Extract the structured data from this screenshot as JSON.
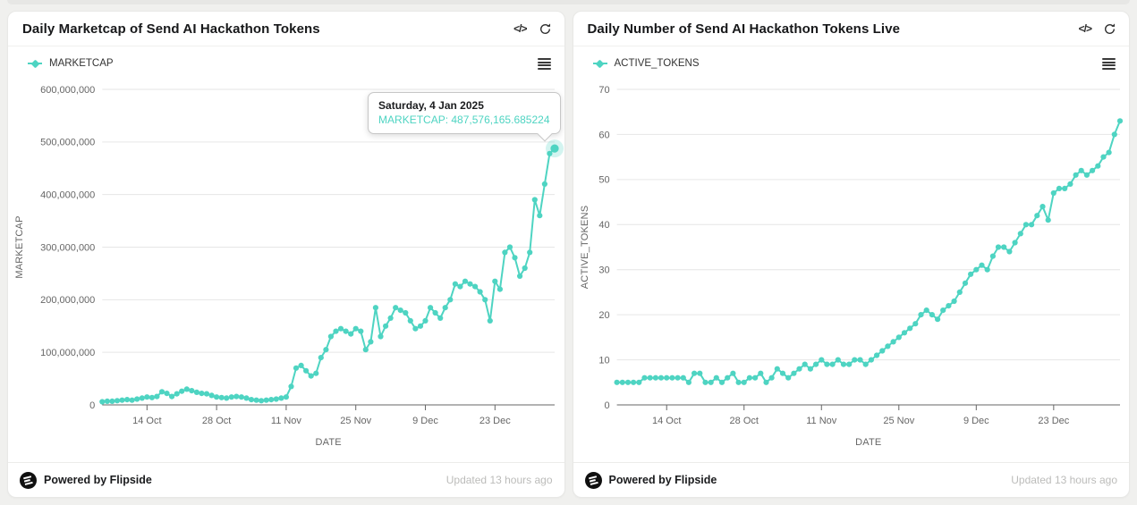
{
  "icons": {
    "code_glyph": "</>"
  },
  "cards": [
    {
      "title": "Daily Marketcap of Send AI Hackathon Tokens",
      "footer": {
        "powered_by": "Powered by Flipside",
        "updated": "Updated 13 hours ago"
      }
    },
    {
      "title": "Daily Number of Send AI Hackathon Tokens Live",
      "footer": {
        "powered_by": "Powered by Flipside",
        "updated": "Updated 13 hours ago"
      }
    }
  ],
  "chart_data": [
    {
      "type": "line",
      "title": "Daily Marketcap of Send AI Hackathon Tokens",
      "series_name": "MARKETCAP",
      "color": "#4ed4c2",
      "xlabel": "DATE",
      "ylabel": "MARKETCAP",
      "ylim": [
        0,
        600000000
      ],
      "y_tick_step": 100000000,
      "grid": true,
      "legend_position": "top-left",
      "x_ticks": [
        {
          "label": "14 Oct",
          "index": 9
        },
        {
          "label": "28 Oct",
          "index": 23
        },
        {
          "label": "11 Nov",
          "index": 37
        },
        {
          "label": "25 Nov",
          "index": 51
        },
        {
          "label": "9 Dec",
          "index": 65
        },
        {
          "label": "23 Dec",
          "index": 79
        }
      ],
      "values": [
        6000000,
        7000000,
        7000000,
        8000000,
        9000000,
        10000000,
        9000000,
        11000000,
        13000000,
        15000000,
        14000000,
        16000000,
        25000000,
        22000000,
        16000000,
        21000000,
        26000000,
        30000000,
        27000000,
        24000000,
        22000000,
        21000000,
        18000000,
        15000000,
        14000000,
        13000000,
        15000000,
        16000000,
        15000000,
        13000000,
        10000000,
        9000000,
        8000000,
        9000000,
        10000000,
        11000000,
        13000000,
        15000000,
        35000000,
        70000000,
        75000000,
        65000000,
        55000000,
        60000000,
        90000000,
        105000000,
        130000000,
        140000000,
        145000000,
        140000000,
        135000000,
        145000000,
        140000000,
        105000000,
        120000000,
        185000000,
        130000000,
        150000000,
        165000000,
        185000000,
        180000000,
        175000000,
        160000000,
        145000000,
        150000000,
        160000000,
        185000000,
        175000000,
        165000000,
        185000000,
        200000000,
        230000000,
        225000000,
        235000000,
        230000000,
        225000000,
        215000000,
        200000000,
        160000000,
        235000000,
        220000000,
        290000000,
        300000000,
        280000000,
        245000000,
        260000000,
        290000000,
        390000000,
        360000000,
        420000000,
        478000000,
        487576165.685224
      ],
      "tooltip": {
        "title": "Saturday, 4 Jan 2025",
        "text": "MARKETCAP: 487,576,165.685224"
      }
    },
    {
      "type": "line",
      "title": "Daily Number of Send AI Hackathon Tokens Live",
      "series_name": "ACTIVE_TOKENS",
      "color": "#4ed4c2",
      "xlabel": "DATE",
      "ylabel": "ACTIVE_TOKENS",
      "ylim": [
        0,
        70
      ],
      "y_tick_step": 10,
      "grid": true,
      "legend_position": "top-left",
      "x_ticks": [
        {
          "label": "14 Oct",
          "index": 9
        },
        {
          "label": "28 Oct",
          "index": 23
        },
        {
          "label": "11 Nov",
          "index": 37
        },
        {
          "label": "25 Nov",
          "index": 51
        },
        {
          "label": "9 Dec",
          "index": 65
        },
        {
          "label": "23 Dec",
          "index": 79
        }
      ],
      "values": [
        5,
        5,
        5,
        5,
        5,
        6,
        6,
        6,
        6,
        6,
        6,
        6,
        6,
        5,
        7,
        7,
        5,
        5,
        6,
        5,
        6,
        7,
        5,
        5,
        6,
        6,
        7,
        5,
        6,
        8,
        7,
        6,
        7,
        8,
        9,
        8,
        9,
        10,
        9,
        9,
        10,
        9,
        9,
        10,
        10,
        9,
        10,
        11,
        12,
        13,
        14,
        15,
        16,
        17,
        18,
        20,
        21,
        20,
        19,
        21,
        22,
        23,
        25,
        27,
        29,
        30,
        31,
        30,
        33,
        35,
        35,
        34,
        36,
        38,
        40,
        40,
        42,
        44,
        41,
        47,
        48,
        48,
        49,
        51,
        52,
        51,
        52,
        53,
        55,
        56,
        60,
        63
      ]
    }
  ]
}
